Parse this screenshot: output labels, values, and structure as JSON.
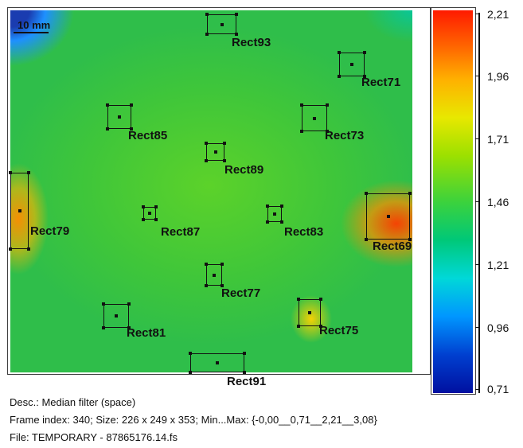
{
  "image": {
    "scale_label": "10 mm"
  },
  "rois": [
    {
      "id": "Rect93",
      "label": "Rect93"
    },
    {
      "id": "Rect71",
      "label": "Rect71"
    },
    {
      "id": "Rect85",
      "label": "Rect85"
    },
    {
      "id": "Rect73",
      "label": "Rect73"
    },
    {
      "id": "Rect89",
      "label": "Rect89"
    },
    {
      "id": "Rect79",
      "label": "Rect79"
    },
    {
      "id": "Rect87",
      "label": "Rect87"
    },
    {
      "id": "Rect83",
      "label": "Rect83"
    },
    {
      "id": "Rect69",
      "label": "Rect69"
    },
    {
      "id": "Rect77",
      "label": "Rect77"
    },
    {
      "id": "Rect81",
      "label": "Rect81"
    },
    {
      "id": "Rect75",
      "label": "Rect75"
    },
    {
      "id": "Rect91",
      "label": "Rect91"
    }
  ],
  "colorbar": {
    "ticks": [
      "2,21",
      "1,96",
      "1,71",
      "1,46",
      "1,21",
      "0,96",
      "0,71"
    ],
    "top_color": "#ff1a00",
    "bottom_color": "#0010a0"
  },
  "info": {
    "desc": "Desc.:  Median filter (space)",
    "frame": "Frame index:  340; Size:  226 x 249 x 353; Min...Max:  {-0,00__0,71__2,21__3,08}",
    "file": "File: TEMPORARY - 87865176.14.fs"
  }
}
